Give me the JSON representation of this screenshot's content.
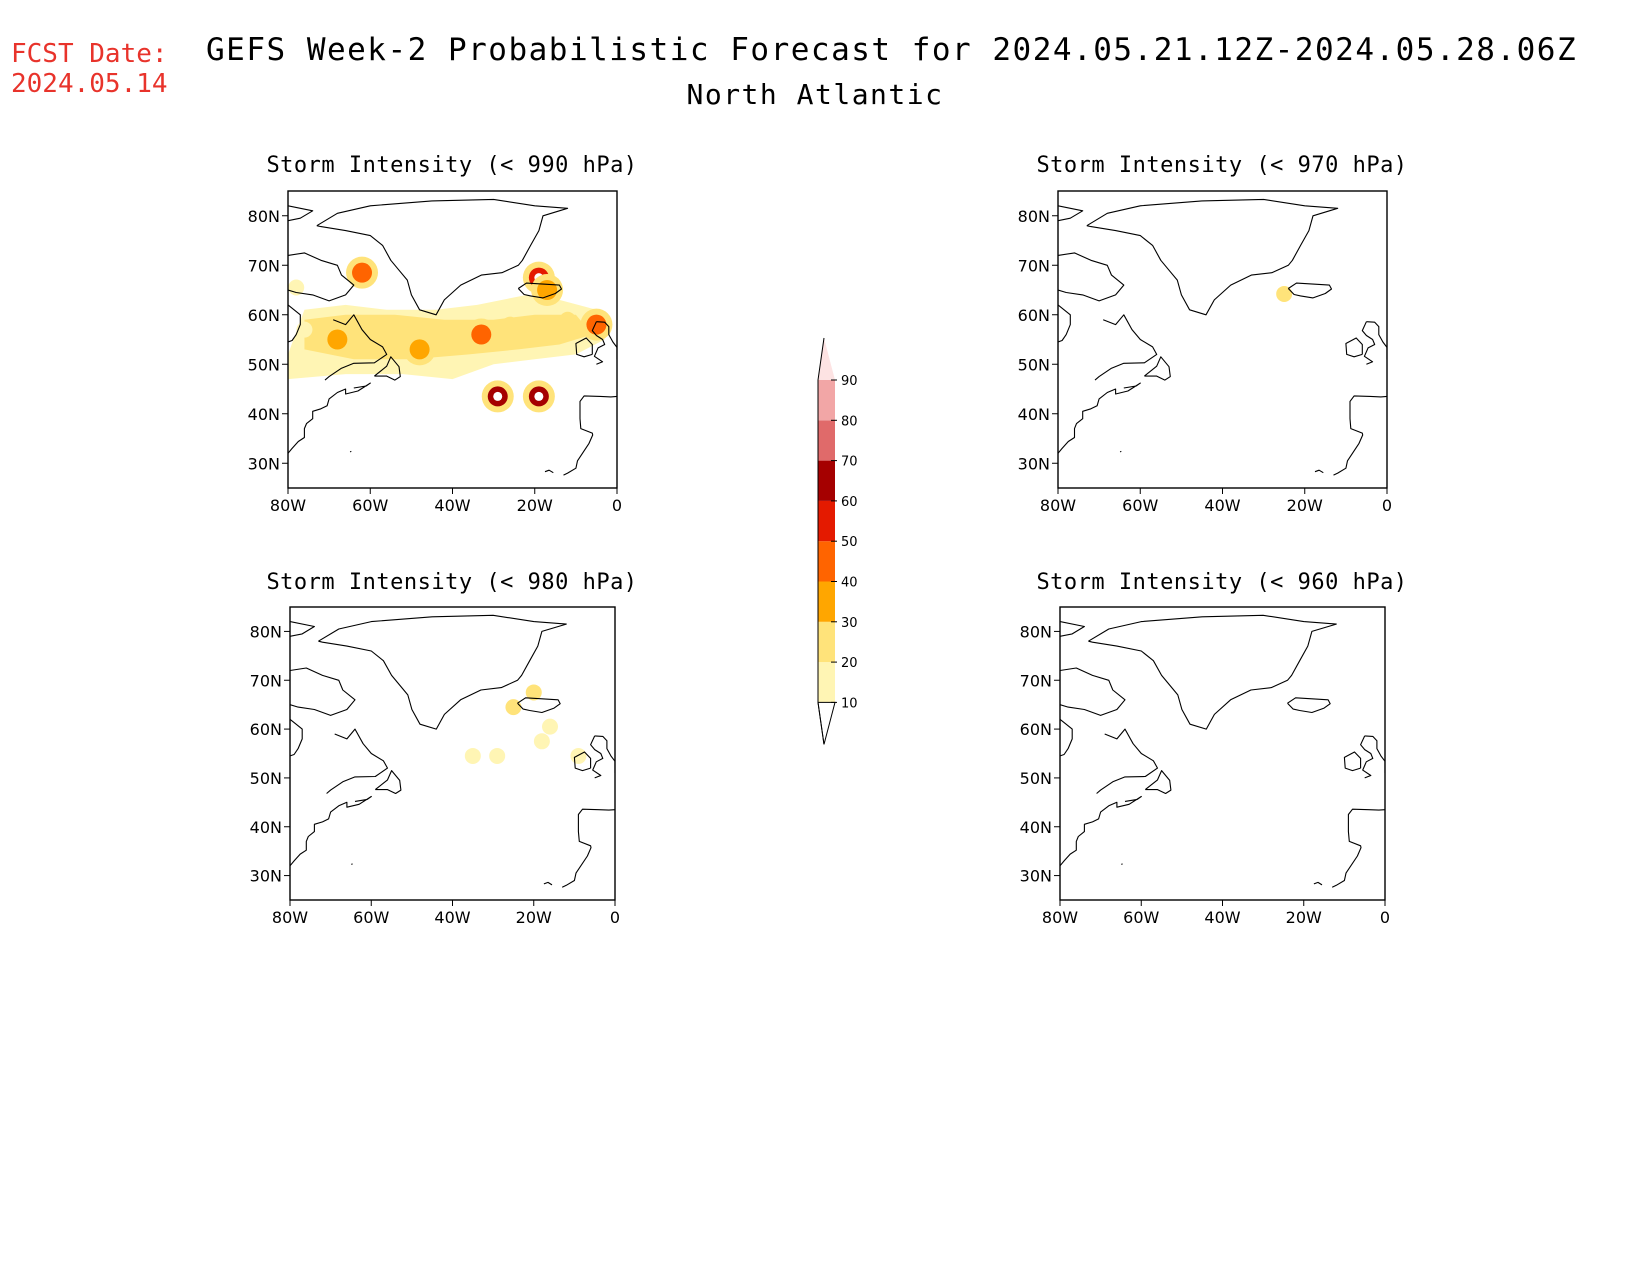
{
  "header": {
    "fcst_label": "FCST Date:",
    "fcst_date": "2024.05.14",
    "title": "GEFS Week-2 Probabilistic Forecast for 2024.05.21.12Z-2024.05.28.06Z",
    "region": "North Atlantic"
  },
  "axes": {
    "lon_labels": [
      "80W",
      "60W",
      "40W",
      "20W",
      "0"
    ],
    "lat_labels": [
      "80N",
      "70N",
      "60N",
      "50N",
      "40N",
      "30N"
    ]
  },
  "colorbar": {
    "levels": [
      "10",
      "20",
      "30",
      "40",
      "50",
      "60",
      "70",
      "80",
      "90"
    ],
    "colors": [
      "#fff5b4",
      "#ffe37a",
      "#ffa600",
      "#ff6400",
      "#e41a00",
      "#a50000",
      "#e06a6a",
      "#f2a6a6",
      "#fde3e3"
    ]
  },
  "panels": [
    {
      "id": "p990",
      "title": "Storm Intensity (< 990 hPa)",
      "blobs": [
        {
          "lon": -62,
          "lat": 68.5,
          "prob": 40
        },
        {
          "lon": -78,
          "lat": 65.5,
          "prob": 10
        },
        {
          "lon": -76,
          "lat": 57,
          "prob": 15
        },
        {
          "lon": -68,
          "lat": 55,
          "prob": 30
        },
        {
          "lon": -62,
          "lat": 53,
          "prob": 20
        },
        {
          "lon": -56,
          "lat": 57,
          "prob": 20
        },
        {
          "lon": -48,
          "lat": 53,
          "prob": 30
        },
        {
          "lon": -40,
          "lat": 57,
          "prob": 20
        },
        {
          "lon": -33,
          "lat": 56,
          "prob": 40
        },
        {
          "lon": -26,
          "lat": 58,
          "prob": 20
        },
        {
          "lon": -18,
          "lat": 56,
          "prob": 20
        },
        {
          "lon": -12,
          "lat": 59,
          "prob": 20
        },
        {
          "lon": -5,
          "lat": 58,
          "prob": 40
        },
        {
          "lon": -19,
          "lat": 67.5,
          "prob": 50
        },
        {
          "lon": -17,
          "lat": 65,
          "prob": 30
        },
        {
          "lon": -29,
          "lat": 43.5,
          "prob": 60
        },
        {
          "lon": -19,
          "lat": 43.5,
          "prob": 60
        }
      ]
    },
    {
      "id": "p970",
      "title": "Storm Intensity (< 970 hPa)",
      "blobs": [
        {
          "lon": -25,
          "lat": 64.2,
          "prob": 20
        }
      ]
    },
    {
      "id": "p980",
      "title": "Storm Intensity (< 980 hPa)",
      "blobs": [
        {
          "lon": -20,
          "lat": 67.5,
          "prob": 20
        },
        {
          "lon": -25,
          "lat": 64.5,
          "prob": 20
        },
        {
          "lon": -35,
          "lat": 54.5,
          "prob": 10
        },
        {
          "lon": -29,
          "lat": 54.5,
          "prob": 10
        },
        {
          "lon": -16,
          "lat": 60.5,
          "prob": 10
        },
        {
          "lon": -18,
          "lat": 57.5,
          "prob": 10
        },
        {
          "lon": -9,
          "lat": 54.5,
          "prob": 10
        }
      ]
    },
    {
      "id": "p960",
      "title": "Storm Intensity (< 960 hPa)",
      "blobs": []
    }
  ]
}
